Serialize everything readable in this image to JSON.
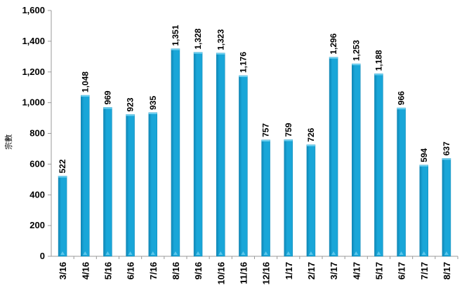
{
  "chart_data": {
    "type": "bar",
    "categories": [
      "3/16",
      "4/16",
      "5/16",
      "6/16",
      "7/16",
      "8/16",
      "9/16",
      "10/16",
      "11/16",
      "12/16",
      "1/17",
      "2/17",
      "3/17",
      "4/17",
      "5/17",
      "6/17",
      "7/17",
      "8/17"
    ],
    "values": [
      522,
      1048,
      969,
      923,
      935,
      1351,
      1328,
      1323,
      1176,
      757,
      759,
      726,
      1296,
      1253,
      1188,
      966,
      594,
      637
    ],
    "value_labels": [
      "522",
      "1,048",
      "969",
      "923",
      "935",
      "1,351",
      "1,328",
      "1,323",
      "1,176",
      "757",
      "759",
      "726",
      "1,296",
      "1,253",
      "1,188",
      "966",
      "594",
      "637"
    ],
    "y_ticks": [
      0,
      200,
      400,
      600,
      800,
      1000,
      1200,
      1400,
      1600
    ],
    "y_tick_labels": [
      "0",
      "200",
      "400",
      "600",
      "800",
      "1,000",
      "1,200",
      "1,400",
      "1,600"
    ],
    "ylim": [
      0,
      1600
    ],
    "xlabel": "",
    "ylabel": "宗數",
    "title": "",
    "grid": false,
    "colors": {
      "bar": "#19a6d8",
      "bar_dark": "#0f86b5",
      "bar_highlight": "#6fd0f0",
      "axis": "#999999"
    }
  }
}
